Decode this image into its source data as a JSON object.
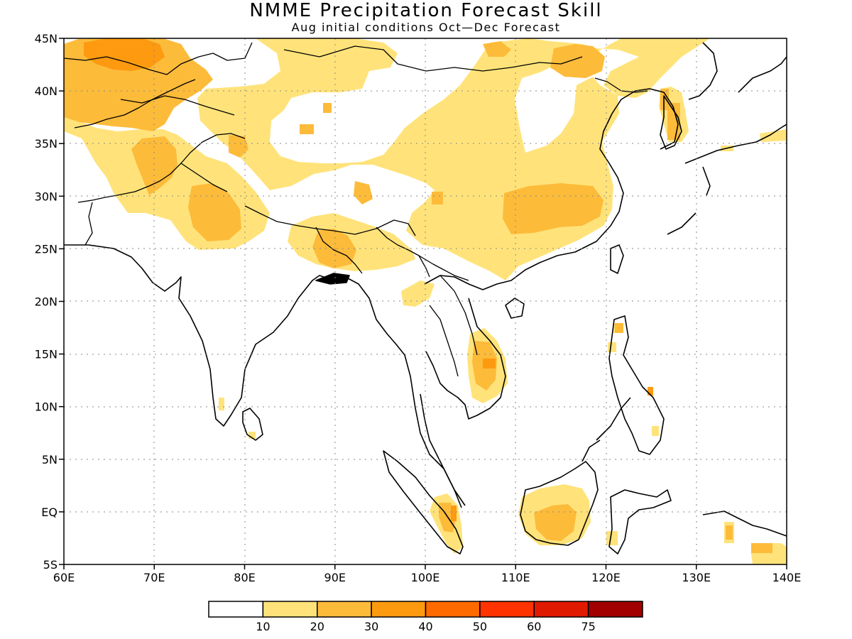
{
  "header": {
    "title": "NMME Precipitation Forecast Skill",
    "subtitle": "Aug initial conditions  Oct—Dec Forecast"
  },
  "map": {
    "lon_range": [
      60,
      140
    ],
    "lat_range": [
      -5,
      45
    ],
    "lon_ticks": [
      {
        "value": 60,
        "label": "60E"
      },
      {
        "value": 70,
        "label": "70E"
      },
      {
        "value": 80,
        "label": "80E"
      },
      {
        "value": 90,
        "label": "90E"
      },
      {
        "value": 100,
        "label": "100E"
      },
      {
        "value": 110,
        "label": "110E"
      },
      {
        "value": 120,
        "label": "120E"
      },
      {
        "value": 130,
        "label": "130E"
      },
      {
        "value": 140,
        "label": "140E"
      }
    ],
    "lat_ticks": [
      {
        "value": 45,
        "label": "45N"
      },
      {
        "value": 40,
        "label": "40N"
      },
      {
        "value": 35,
        "label": "35N"
      },
      {
        "value": 30,
        "label": "30N"
      },
      {
        "value": 25,
        "label": "25N"
      },
      {
        "value": 20,
        "label": "20N"
      },
      {
        "value": 15,
        "label": "15N"
      },
      {
        "value": 10,
        "label": "10N"
      },
      {
        "value": 5,
        "label": "5N"
      },
      {
        "value": 0,
        "label": "EQ"
      },
      {
        "value": -5,
        "label": "5S"
      }
    ],
    "grid": true,
    "colors": {
      "level1": "#ffe37a",
      "level2": "#fdbb3a",
      "level3": "#fd9a10",
      "coast": "#000000"
    }
  },
  "legend": {
    "bins": [
      {
        "color": "#ffffff"
      },
      {
        "color": "#ffe37a"
      },
      {
        "color": "#fdbb3a"
      },
      {
        "color": "#fd9a10"
      },
      {
        "color": "#ff6a00"
      },
      {
        "color": "#ff3300"
      },
      {
        "color": "#e01a00"
      },
      {
        "color": "#a00000"
      }
    ],
    "labels": [
      "10",
      "20",
      "30",
      "40",
      "50",
      "60",
      "75"
    ]
  }
}
